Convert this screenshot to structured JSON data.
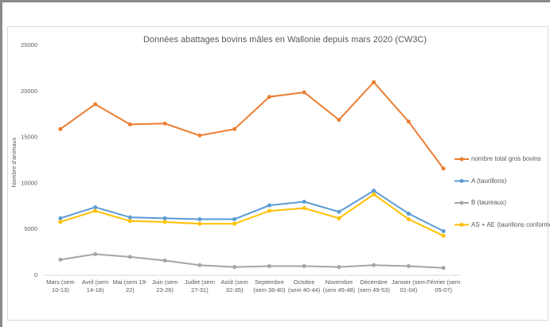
{
  "chart_data": {
    "type": "line",
    "title": "Données abattages bovins mâles en Wallonie depuis mars 2020 (CW3C)",
    "y_label": "Nombre d'animaux",
    "categories": [
      "Mars (sem 10-13)",
      "Avril (sem 14-18)",
      "Mai (sem 19-22)",
      "Juin (sem 23-26)",
      "Juillet (sem 27-31)",
      "Août (sem 32-35)",
      "Septembre (sem 36-40)",
      "Octobre (sem 40-44)",
      "Novembre (sem 45-48)",
      "Décembre (sem 49-53)",
      "Janvier (sem 01-04)",
      "Février (sem 05-07)"
    ],
    "series": [
      {
        "name": "nombre total gros bovins",
        "color": "#ED7D31",
        "values": [
          15900,
          18600,
          16400,
          16500,
          15200,
          15900,
          19400,
          19900,
          16900,
          21000,
          16700,
          11600
        ]
      },
      {
        "name": "A (taurillons)",
        "color": "#5B9BD5",
        "values": [
          6200,
          7400,
          6300,
          6200,
          6100,
          6100,
          7600,
          8000,
          6900,
          9200,
          6700,
          4800
        ]
      },
      {
        "name": "B (taureaux)",
        "color": "#A5A5A5",
        "values": [
          1700,
          2300,
          2000,
          1600,
          1100,
          900,
          1000,
          1000,
          900,
          1100,
          1000,
          800
        ]
      },
      {
        "name": "AS + AE (taurillons conformés)",
        "color": "#FFC000",
        "values": [
          5800,
          7000,
          5900,
          5800,
          5600,
          5600,
          7000,
          7300,
          6200,
          8800,
          6100,
          4300
        ]
      }
    ],
    "ylim": [
      0,
      25000
    ],
    "yticks": [
      0,
      5000,
      10000,
      15000,
      20000,
      25000
    ],
    "grid": false,
    "legend": "right"
  }
}
